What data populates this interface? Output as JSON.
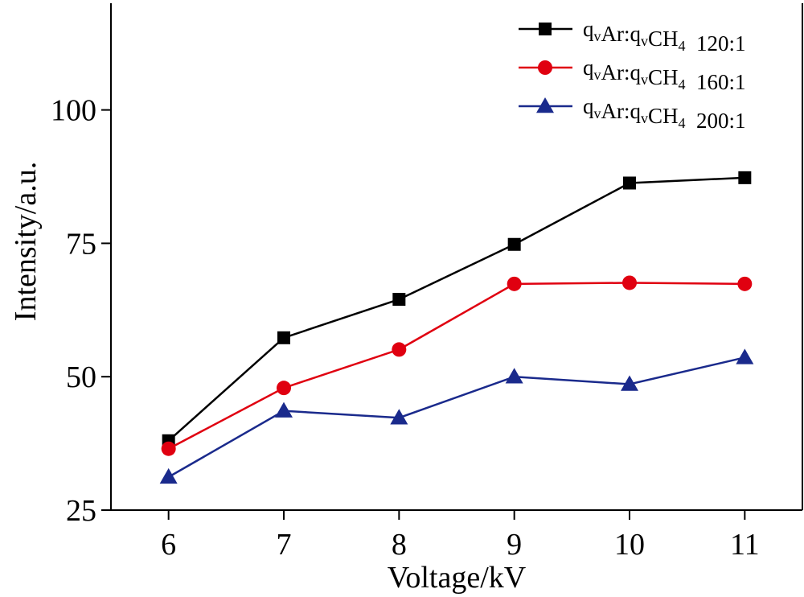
{
  "chart_data": {
    "type": "line",
    "xlabel": "Voltage/kV",
    "ylabel": "Intensity/a.u.",
    "x": [
      6,
      7,
      8,
      9,
      10,
      11
    ],
    "xlim": [
      5.5,
      11.5
    ],
    "ylim": [
      25,
      120
    ],
    "yticks": [
      25,
      50,
      75,
      100
    ],
    "xticks": [
      6,
      7,
      8,
      9,
      10,
      11
    ],
    "grid": false,
    "legend_position": "top-right",
    "series": [
      {
        "name": "q_vAr:q_vCH_4 120:1",
        "legend": {
          "q1": "q",
          "v1": "v",
          "ar": "Ar:",
          "q2": "q",
          "v2": "v",
          "ch": "CH",
          "n": "4",
          "ratio": "120:1"
        },
        "marker": "square",
        "color": "#000000",
        "values": [
          38,
          57.3,
          64.5,
          74.8,
          86.3,
          87.3
        ]
      },
      {
        "name": "q_vAr:q_vCH_4 160:1",
        "legend": {
          "q1": "q",
          "v1": "v",
          "ar": "Ar:",
          "q2": "q",
          "v2": "v",
          "ch": "CH",
          "n": "4",
          "ratio": "160:1"
        },
        "marker": "circle",
        "color": "#e00010",
        "values": [
          36.5,
          47.9,
          55.1,
          67.4,
          67.6,
          67.4
        ]
      },
      {
        "name": "q_vAr:q_vCH_4 200:1",
        "legend": {
          "q1": "q",
          "v1": "v",
          "ar": "Ar:",
          "q2": "q",
          "v2": "v",
          "ch": "CH",
          "n": "4",
          "ratio": "200:1"
        },
        "marker": "triangle",
        "color": "#1a2a8c",
        "values": [
          31.2,
          43.6,
          42.3,
          50,
          48.6,
          53.6
        ]
      }
    ]
  }
}
